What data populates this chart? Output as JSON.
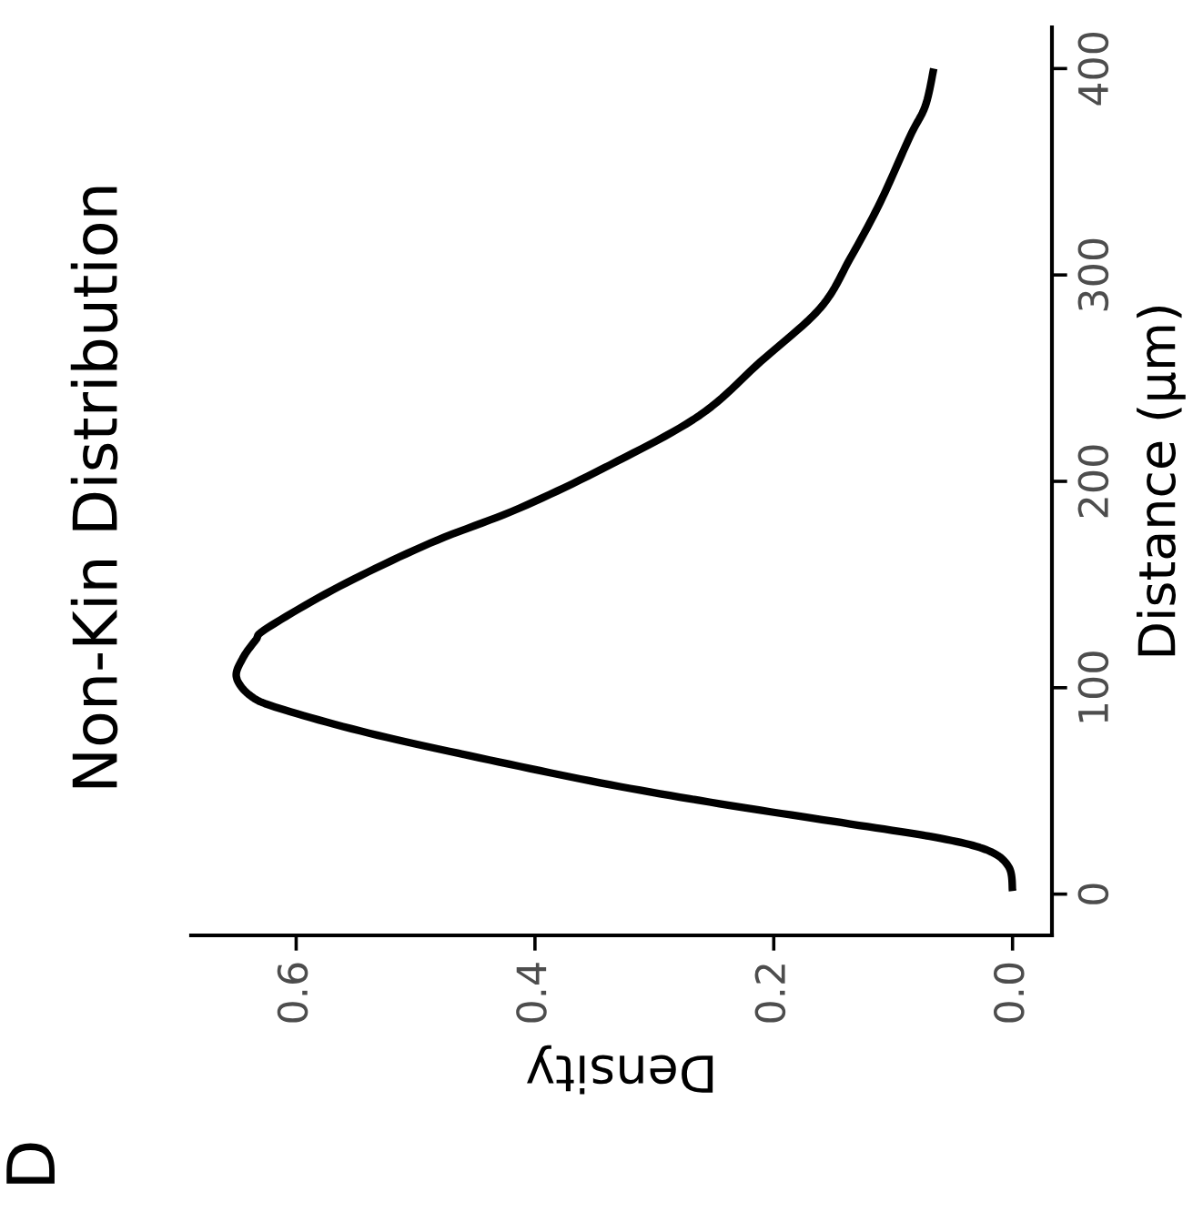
{
  "chart_data": {
    "type": "line",
    "title": "Non-Kin Distribution",
    "xlabel": "Density",
    "ylabel": "Distance (µm)",
    "annotations": [
      "D"
    ],
    "series": [
      {
        "color": "#000000",
        "x": [
          0.0,
          0.003,
          0.02,
          0.06,
          0.136,
          0.237,
          0.337,
          0.438,
          0.539,
          0.614,
          0.638,
          0.65,
          0.645,
          0.634,
          0.624,
          0.564,
          0.488,
          0.413,
          0.337,
          0.262,
          0.211,
          0.161,
          0.136,
          0.111,
          0.086,
          0.073,
          0.066
        ],
        "values": [
          1.5,
          13,
          21,
          27,
          34,
          43,
          53,
          65,
          78,
          90,
          96,
          105,
          114,
          123,
          129,
          149,
          170,
          187,
          208,
          232,
          258,
          284,
          308,
          335,
          367,
          382,
          400
        ]
      }
    ],
    "xlim": [
      0.688,
      -0.033
    ],
    "ylim": [
      -20,
      420
    ],
    "xticks": [
      {
        "value": 0,
        "label": "0.0"
      },
      {
        "value": 0.2,
        "label": "0.2"
      },
      {
        "value": 0.4,
        "label": "0.4"
      },
      {
        "value": 0.6,
        "label": "0.6"
      }
    ],
    "yticks": [
      0,
      100,
      200,
      300,
      400
    ],
    "grid": false,
    "legend": false,
    "marker": "none",
    "line_style": "solid"
  }
}
